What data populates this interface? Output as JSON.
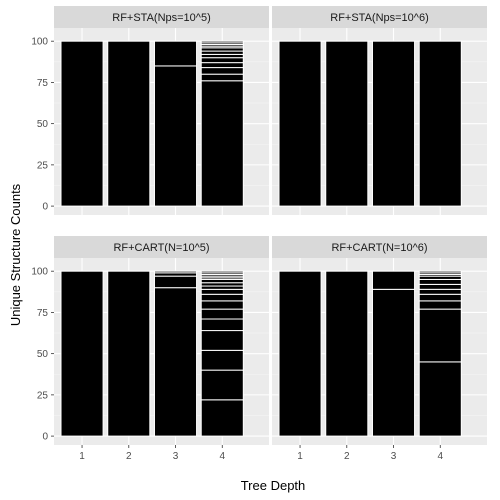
{
  "chart_data": {
    "type": "bar",
    "style": "stacked bars of unique structures, outlined in white, faceted 2x2",
    "xlabel": "Tree Depth",
    "ylabel": "Unique Structure Counts",
    "categories": [
      "1",
      "2",
      "3",
      "4"
    ],
    "ylim": [
      0,
      108
    ],
    "yticks": [
      0,
      25,
      50,
      75,
      100
    ],
    "grid": true,
    "legend": "none",
    "colors": {
      "bar_fill": "#000000",
      "bar_outline": "#ffffff",
      "panel_bg": "#ebebeb",
      "grid_major": "#ffffff",
      "grid_minor": "#f5f5f5",
      "strip_bg": "#d9d9d9"
    },
    "facets": [
      {
        "title": "RF+STA(Nps=10^5)",
        "bars": [
          {
            "category": "1",
            "total": 100,
            "segments": [
              100
            ]
          },
          {
            "category": "2",
            "total": 100,
            "segments": [
              100
            ]
          },
          {
            "category": "3",
            "total": 100,
            "segments": [
              85,
              15
            ]
          },
          {
            "category": "4",
            "total": 100,
            "segments": [
              76,
              4,
              4,
              3,
              3,
              2,
              2,
              2,
              1,
              1,
              1,
              1
            ]
          }
        ]
      },
      {
        "title": "RF+STA(Nps=10^6)",
        "bars": [
          {
            "category": "1",
            "total": 100,
            "segments": [
              100
            ]
          },
          {
            "category": "2",
            "total": 100,
            "segments": [
              100
            ]
          },
          {
            "category": "3",
            "total": 100,
            "segments": [
              100
            ]
          },
          {
            "category": "4",
            "total": 100,
            "segments": [
              100
            ]
          }
        ]
      },
      {
        "title": "RF+CART(N=10^5)",
        "bars": [
          {
            "category": "1",
            "total": 100,
            "segments": [
              100
            ]
          },
          {
            "category": "2",
            "total": 100,
            "segments": [
              100
            ]
          },
          {
            "category": "3",
            "total": 100,
            "segments": [
              90,
              7,
              2,
              1
            ]
          },
          {
            "category": "4",
            "total": 100,
            "segments": [
              22,
              18,
              12,
              12,
              7,
              6,
              5,
              4,
              3,
              2,
              2,
              2,
              1,
              1,
              1,
              1,
              1
            ]
          }
        ]
      },
      {
        "title": "RF+CART(N=10^6)",
        "bars": [
          {
            "category": "1",
            "total": 100,
            "segments": [
              100
            ]
          },
          {
            "category": "2",
            "total": 100,
            "segments": [
              100
            ]
          },
          {
            "category": "3",
            "total": 100,
            "segments": [
              89,
              11
            ]
          },
          {
            "category": "4",
            "total": 100,
            "segments": [
              45,
              32,
              5,
              4,
              3,
              3,
              3,
              2,
              1,
              1,
              1
            ]
          }
        ]
      }
    ]
  }
}
